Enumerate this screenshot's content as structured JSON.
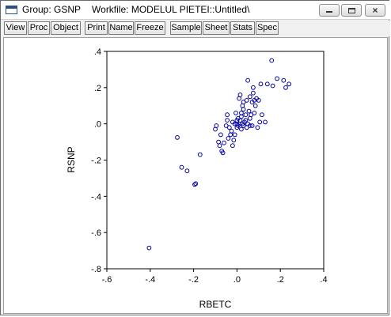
{
  "window": {
    "title_group": "Group: GSNP",
    "title_workfile": "Workfile: MODELUL PIETEI::Untitled\\",
    "controls": {
      "minimize_icon": "minimize-icon",
      "maximize_icon": "maximize-icon",
      "close_icon": "close-icon"
    }
  },
  "toolbar": {
    "view": "View",
    "proc": "Proc",
    "object": "Object",
    "print": "Print",
    "name": "Name",
    "freeze": "Freeze",
    "sample": "Sample",
    "sheet": "Sheet",
    "stats": "Stats",
    "spec": "Spec"
  },
  "chart_data": {
    "type": "scatter",
    "xlabel": "RBETC",
    "ylabel": "RSNP",
    "xlim": [
      -0.6,
      0.4
    ],
    "ylim": [
      -0.8,
      0.4
    ],
    "xticks": [
      "-.6",
      "-.4",
      "-.2",
      ".0",
      ".2",
      ".4"
    ],
    "yticks": [
      ".4",
      ".2",
      ".0",
      "-.2",
      "-.4",
      "-.6",
      "-.8"
    ],
    "marker_color": "#0000a0",
    "grid": false,
    "points": [
      [
        -0.405,
        -0.685
      ],
      [
        -0.275,
        -0.075
      ],
      [
        -0.255,
        -0.24
      ],
      [
        -0.23,
        -0.26
      ],
      [
        -0.195,
        -0.335
      ],
      [
        -0.19,
        -0.33
      ],
      [
        -0.17,
        -0.17
      ],
      [
        -0.1,
        -0.03
      ],
      [
        -0.095,
        -0.01
      ],
      [
        -0.085,
        -0.1
      ],
      [
        -0.08,
        -0.12
      ],
      [
        -0.075,
        -0.06
      ],
      [
        -0.07,
        -0.15
      ],
      [
        -0.065,
        -0.16
      ],
      [
        -0.06,
        -0.105
      ],
      [
        -0.05,
        -0.01
      ],
      [
        -0.045,
        0.05
      ],
      [
        -0.04,
        -0.08
      ],
      [
        -0.035,
        -0.02
      ],
      [
        -0.03,
        -0.06
      ],
      [
        -0.025,
        -0.04
      ],
      [
        -0.02,
        -0.12
      ],
      [
        -0.015,
        -0.09
      ],
      [
        -0.01,
        -0.06
      ],
      [
        -0.01,
        0.0
      ],
      [
        -0.005,
        0.06
      ],
      [
        0.0,
        -0.02
      ],
      [
        0.0,
        0.02
      ],
      [
        0.005,
        0.03
      ],
      [
        0.005,
        -0.01
      ],
      [
        0.01,
        0.14
      ],
      [
        0.01,
        0.0
      ],
      [
        0.015,
        0.16
      ],
      [
        0.015,
        0.02
      ],
      [
        0.02,
        -0.03
      ],
      [
        0.02,
        0.04
      ],
      [
        0.025,
        0.1
      ],
      [
        0.025,
        0.0
      ],
      [
        0.03,
        -0.01
      ],
      [
        0.03,
        0.08
      ],
      [
        0.035,
        0.01
      ],
      [
        0.04,
        0.05
      ],
      [
        0.045,
        -0.02
      ],
      [
        0.045,
        0.13
      ],
      [
        0.05,
        0.24
      ],
      [
        0.05,
        0.0
      ],
      [
        0.055,
        0.07
      ],
      [
        0.06,
        0.15
      ],
      [
        0.06,
        0.03
      ],
      [
        0.065,
        0.05
      ],
      [
        0.07,
        0.12
      ],
      [
        0.07,
        -0.01
      ],
      [
        0.075,
        0.17
      ],
      [
        0.075,
        0.2
      ],
      [
        0.08,
        0.06
      ],
      [
        0.085,
        0.1
      ],
      [
        0.09,
        0.14
      ],
      [
        0.095,
        -0.02
      ],
      [
        0.1,
        0.13
      ],
      [
        0.105,
        0.01
      ],
      [
        0.11,
        0.22
      ],
      [
        0.115,
        0.05
      ],
      [
        0.13,
        0.01
      ],
      [
        0.14,
        0.22
      ],
      [
        0.16,
        0.35
      ],
      [
        0.165,
        0.21
      ],
      [
        0.185,
        0.25
      ],
      [
        0.215,
        0.24
      ],
      [
        0.225,
        0.2
      ],
      [
        0.24,
        0.22
      ],
      [
        -0.045,
        0.02
      ],
      [
        0.0,
        0.0
      ],
      [
        0.02,
        0.06
      ],
      [
        0.04,
        0.02
      ],
      [
        0.06,
        -0.01
      ],
      [
        -0.02,
        0.01
      ],
      [
        0.08,
        0.13
      ],
      [
        0.03,
        0.12
      ]
    ]
  }
}
